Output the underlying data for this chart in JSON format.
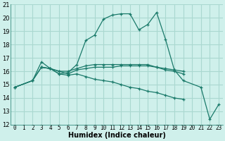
{
  "bg_color": "#cff0eb",
  "grid_color": "#aad8d0",
  "line_color": "#1a7a6a",
  "xlabel": "Humidex (Indice chaleur)",
  "xlim": [
    -0.5,
    23.5
  ],
  "ylim": [
    12,
    21
  ],
  "yticks": [
    12,
    13,
    14,
    15,
    16,
    17,
    18,
    19,
    20,
    21
  ],
  "xtick_labels": [
    "0",
    "1",
    "2",
    "3",
    "4",
    "5",
    "6",
    "7",
    "8",
    "9",
    "10",
    "11",
    "12",
    "13",
    "14",
    "15",
    "16",
    "17",
    "18",
    "19",
    "20",
    "21",
    "22",
    "23"
  ],
  "xtick_positions": [
    0,
    1,
    2,
    3,
    4,
    5,
    6,
    7,
    8,
    9,
    10,
    11,
    12,
    13,
    14,
    15,
    16,
    17,
    18,
    19,
    20,
    21,
    22,
    23
  ],
  "series": [
    {
      "x": [
        0,
        2,
        3,
        4,
        5,
        6,
        7,
        8,
        9,
        10,
        11,
        12,
        13,
        14,
        15,
        16,
        17,
        18,
        19,
        21,
        22,
        23
      ],
      "y": [
        14.8,
        15.3,
        16.3,
        16.2,
        15.8,
        15.9,
        16.5,
        18.3,
        18.7,
        19.9,
        20.2,
        20.3,
        20.3,
        19.1,
        19.5,
        20.4,
        18.4,
        16.1,
        15.3,
        14.8,
        12.4,
        13.5
      ]
    },
    {
      "x": [
        0,
        2,
        3,
        4,
        5,
        6,
        7,
        8,
        9,
        10,
        11,
        12,
        13,
        14,
        15,
        16,
        17,
        18,
        19
      ],
      "y": [
        14.8,
        15.3,
        16.7,
        16.2,
        16.0,
        15.8,
        16.1,
        16.2,
        16.3,
        16.3,
        16.3,
        16.4,
        16.4,
        16.4,
        16.4,
        16.3,
        16.2,
        16.1,
        16.0
      ]
    },
    {
      "x": [
        0,
        2,
        3,
        4,
        5,
        6,
        7,
        8,
        9,
        10,
        11,
        12,
        13,
        14,
        15,
        16,
        17,
        18,
        19
      ],
      "y": [
        14.8,
        15.3,
        16.3,
        16.2,
        15.8,
        15.7,
        15.8,
        15.6,
        15.4,
        15.3,
        15.2,
        15.0,
        14.8,
        14.7,
        14.5,
        14.4,
        14.2,
        14.0,
        13.9
      ]
    },
    {
      "x": [
        3,
        4,
        5,
        6,
        7,
        8,
        9,
        10,
        11,
        12,
        13,
        14,
        15,
        16,
        17,
        18,
        19
      ],
      "y": [
        16.3,
        16.2,
        16.0,
        16.0,
        16.2,
        16.4,
        16.5,
        16.5,
        16.5,
        16.5,
        16.5,
        16.5,
        16.5,
        16.3,
        16.1,
        16.0,
        15.8
      ]
    }
  ]
}
